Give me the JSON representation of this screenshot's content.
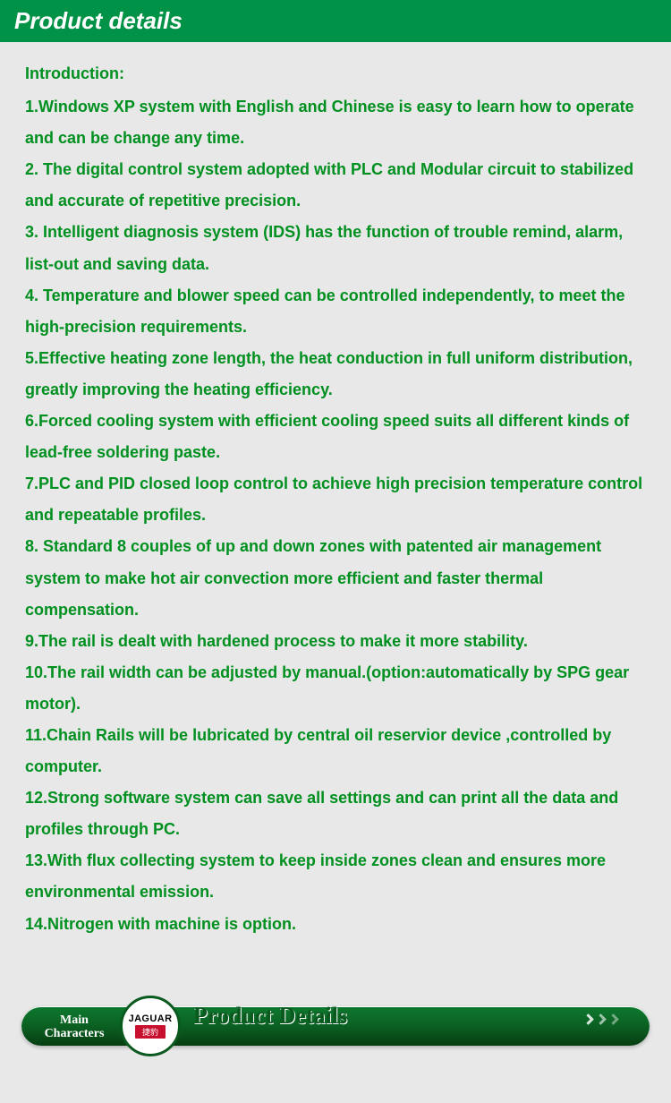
{
  "header": {
    "title": "Product details"
  },
  "intro": {
    "label": "Introduction:",
    "items": [
      "1.Windows XP system with English and Chinese is easy to learn how to operate and can be change any time.",
      "2. The digital control system adopted with PLC and Modular circuit to stabilized and accurate of repetitive precision.",
      "3. Intelligent diagnosis system (IDS) has the function of trouble remind, alarm, list-out and saving data.",
      "4. Temperature and blower speed can be controlled independently, to meet the high-precision requirements.",
      "5.Effective heating zone length, the heat conduction in full uniform distribution, greatly improving the heating efficiency.",
      "6.Forced cooling system with efficient cooling speed suits all different kinds of lead-free soldering paste.",
      "7.PLC and PID closed loop control to achieve high precision temperature control and repeatable profiles.",
      "8. Standard 8 couples of up and down zones with patented air management system to make hot air convection more efficient and faster thermal compensation.",
      "9.The rail is dealt with hardened process to make it more stability.",
      "10.The rail width can be adjusted by manual.(option:automatically by SPG gear motor).",
      "11.Chain Rails will be lubricated by central oil reservior device ,controlled by computer.",
      "12.Strong software system can save all settings and can print all the data and profiles through PC.",
      "13.With flux collecting system to keep inside zones clean and ensures more environmental emission.",
      "14.Nitrogen with machine is option."
    ]
  },
  "footer": {
    "left_line1": "Main",
    "left_line2": "Characters",
    "logo_top": "JAGUAR",
    "logo_bottom": "捷豹",
    "title": "Product  Details"
  },
  "colors": {
    "header_bg": "#009246",
    "body_bg": "#e8e8e8",
    "text": "#009020",
    "pill_dark": "#0a5a1f",
    "logo_red": "#C8102E"
  }
}
